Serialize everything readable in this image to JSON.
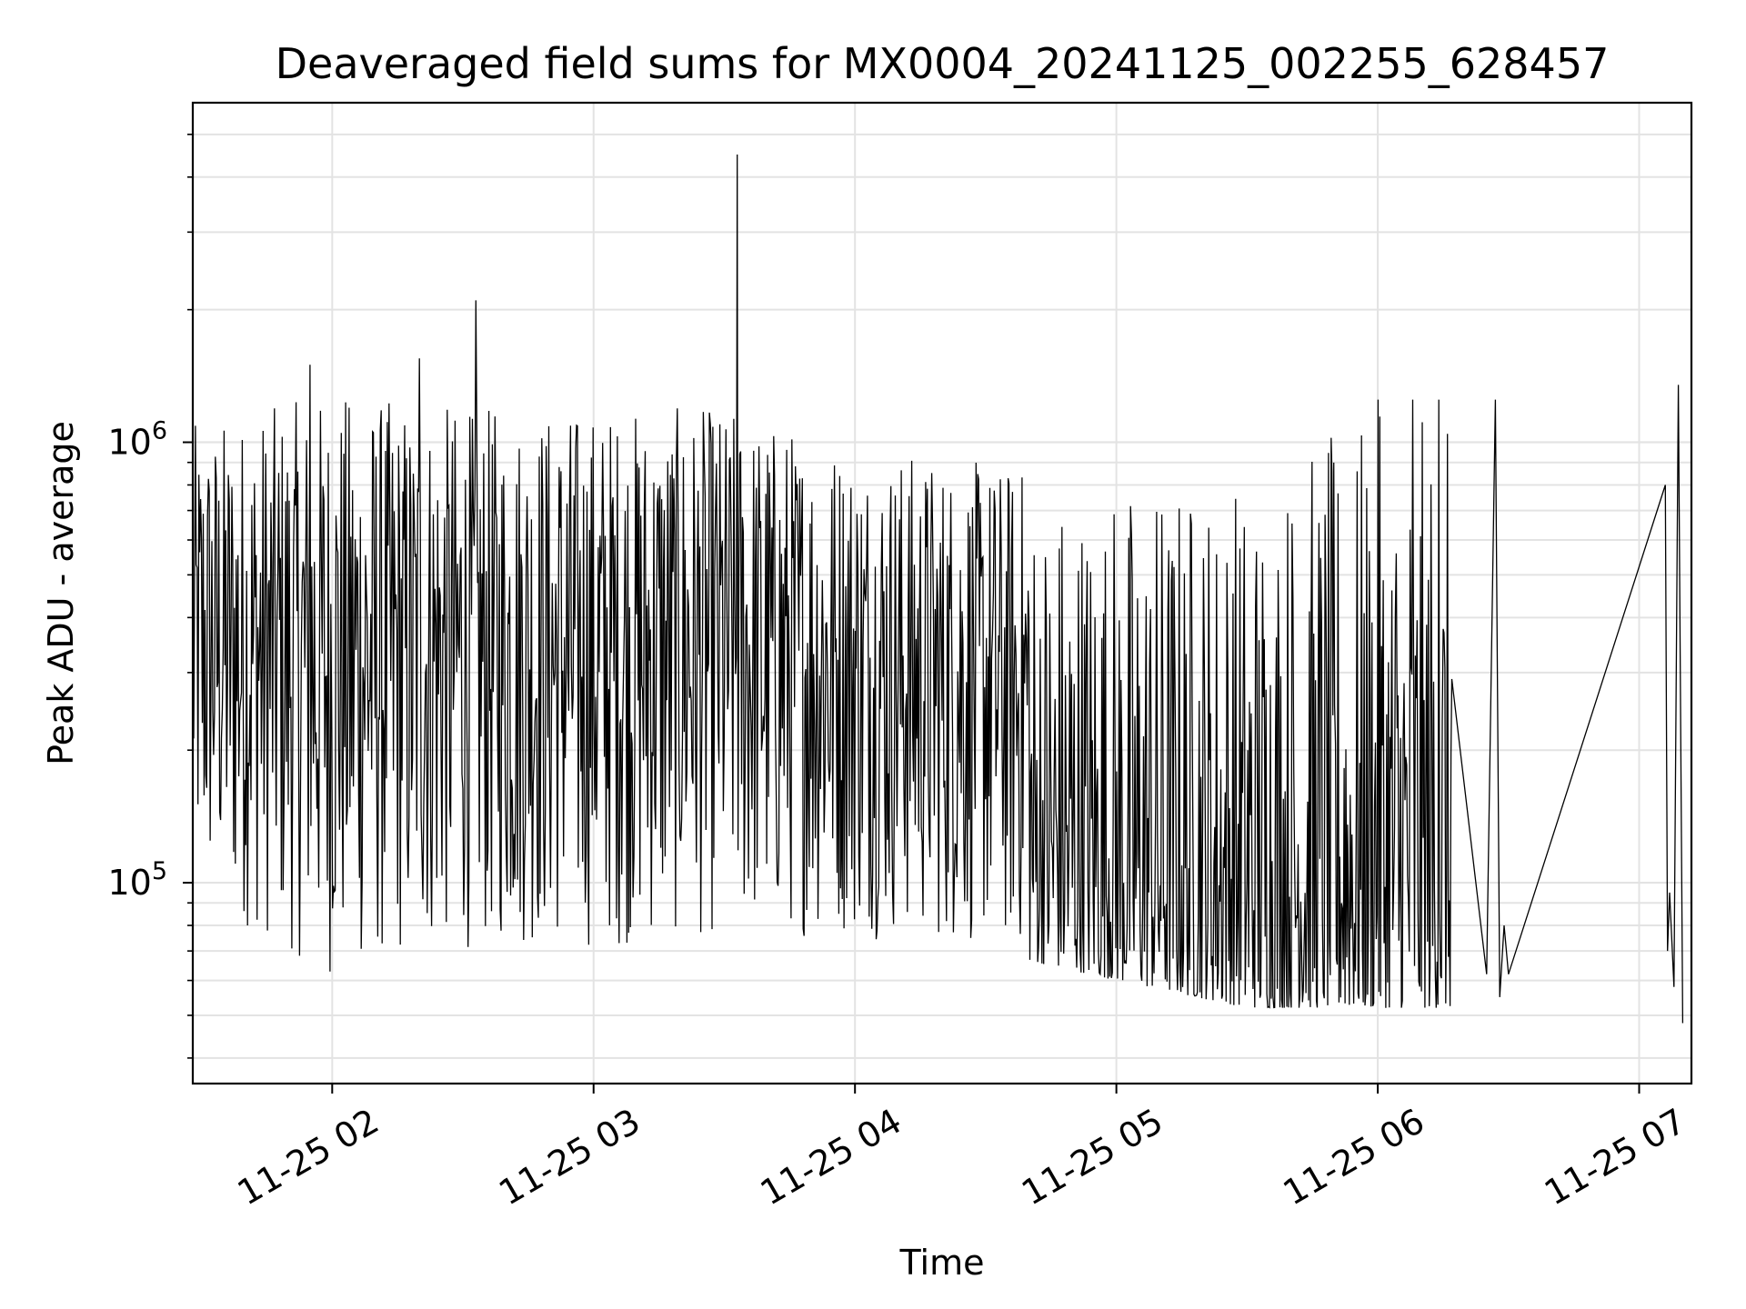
{
  "chart_data": {
    "type": "line",
    "title": "Deaveraged field sums for MX0004_20241125_002255_628457",
    "xlabel": "Time",
    "ylabel": "Peak ADU - average",
    "x_axis": {
      "type": "time",
      "range": [
        "2024-11-25T01:28:00",
        "2024-11-25T07:12:00"
      ],
      "ticks": [
        "2024-11-25T02:00:00",
        "2024-11-25T03:00:00",
        "2024-11-25T04:00:00",
        "2024-11-25T05:00:00",
        "2024-11-25T06:00:00",
        "2024-11-25T07:00:00"
      ],
      "tick_labels": [
        "11-25 02",
        "11-25 03",
        "11-25 04",
        "11-25 05",
        "11-25 06",
        "11-25 07"
      ]
    },
    "y_axis": {
      "scale": "log",
      "range": [
        35000,
        5900000
      ],
      "major_ticks": [
        100000,
        1000000
      ],
      "major_tick_labels": [
        {
          "base": "10",
          "exp": "5"
        },
        {
          "base": "10",
          "exp": "6"
        }
      ]
    },
    "grid": true,
    "legend": "none",
    "line_color": "#000000",
    "series": [
      {
        "segments": [
          {
            "start": "2024-11-25T01:28:00",
            "end": "2024-11-25T06:17:00",
            "samples": 1450,
            "envelope": [
              {
                "time": "2024-11-25T01:30:00",
                "low": 90000,
                "high": 1100000
              },
              {
                "time": "2024-11-25T02:00:00",
                "low": 60000,
                "high": 1300000
              },
              {
                "time": "2024-11-25T02:30:00",
                "low": 70000,
                "high": 1200000
              },
              {
                "time": "2024-11-25T03:00:00",
                "low": 70000,
                "high": 1200000
              },
              {
                "time": "2024-11-25T03:30:00",
                "low": 75000,
                "high": 1200000
              },
              {
                "time": "2024-11-25T04:00:00",
                "low": 75000,
                "high": 1000000
              },
              {
                "time": "2024-11-25T04:30:00",
                "low": 70000,
                "high": 900000
              },
              {
                "time": "2024-11-25T05:00:00",
                "low": 60000,
                "high": 850000
              },
              {
                "time": "2024-11-25T05:30:00",
                "low": 52000,
                "high": 900000
              },
              {
                "time": "2024-11-25T06:00:00",
                "low": 52000,
                "high": 1150000
              }
            ],
            "spikes": [
              {
                "time": "2024-11-25T03:33:00",
                "value": 4500000
              },
              {
                "time": "2024-11-25T02:33:00",
                "value": 2100000
              },
              {
                "time": "2024-11-25T02:20:00",
                "value": 1550000
              },
              {
                "time": "2024-11-25T01:55:00",
                "value": 1500000
              },
              {
                "time": "2024-11-25T06:00:00",
                "value": 1250000
              },
              {
                "time": "2024-11-25T06:08:00",
                "value": 1250000
              },
              {
                "time": "2024-11-25T06:14:00",
                "value": 1250000
              }
            ]
          },
          {
            "points": [
              {
                "time": "2024-11-25T06:17:00",
                "value": 290000
              },
              {
                "time": "2024-11-25T06:25:00",
                "value": 62000
              },
              {
                "time": "2024-11-25T06:27:00",
                "value": 1250000
              },
              {
                "time": "2024-11-25T06:28:00",
                "value": 55000
              },
              {
                "time": "2024-11-25T06:29:00",
                "value": 80000
              },
              {
                "time": "2024-11-25T06:30:00",
                "value": 62000
              },
              {
                "time": "2024-11-25T07:06:00",
                "value": 800000
              },
              {
                "time": "2024-11-25T07:06:30",
                "value": 70000
              },
              {
                "time": "2024-11-25T07:07:00",
                "value": 95000
              },
              {
                "time": "2024-11-25T07:08:00",
                "value": 58000
              },
              {
                "time": "2024-11-25T07:09:00",
                "value": 1350000
              },
              {
                "time": "2024-11-25T07:10:00",
                "value": 48000
              }
            ]
          }
        ]
      }
    ]
  }
}
